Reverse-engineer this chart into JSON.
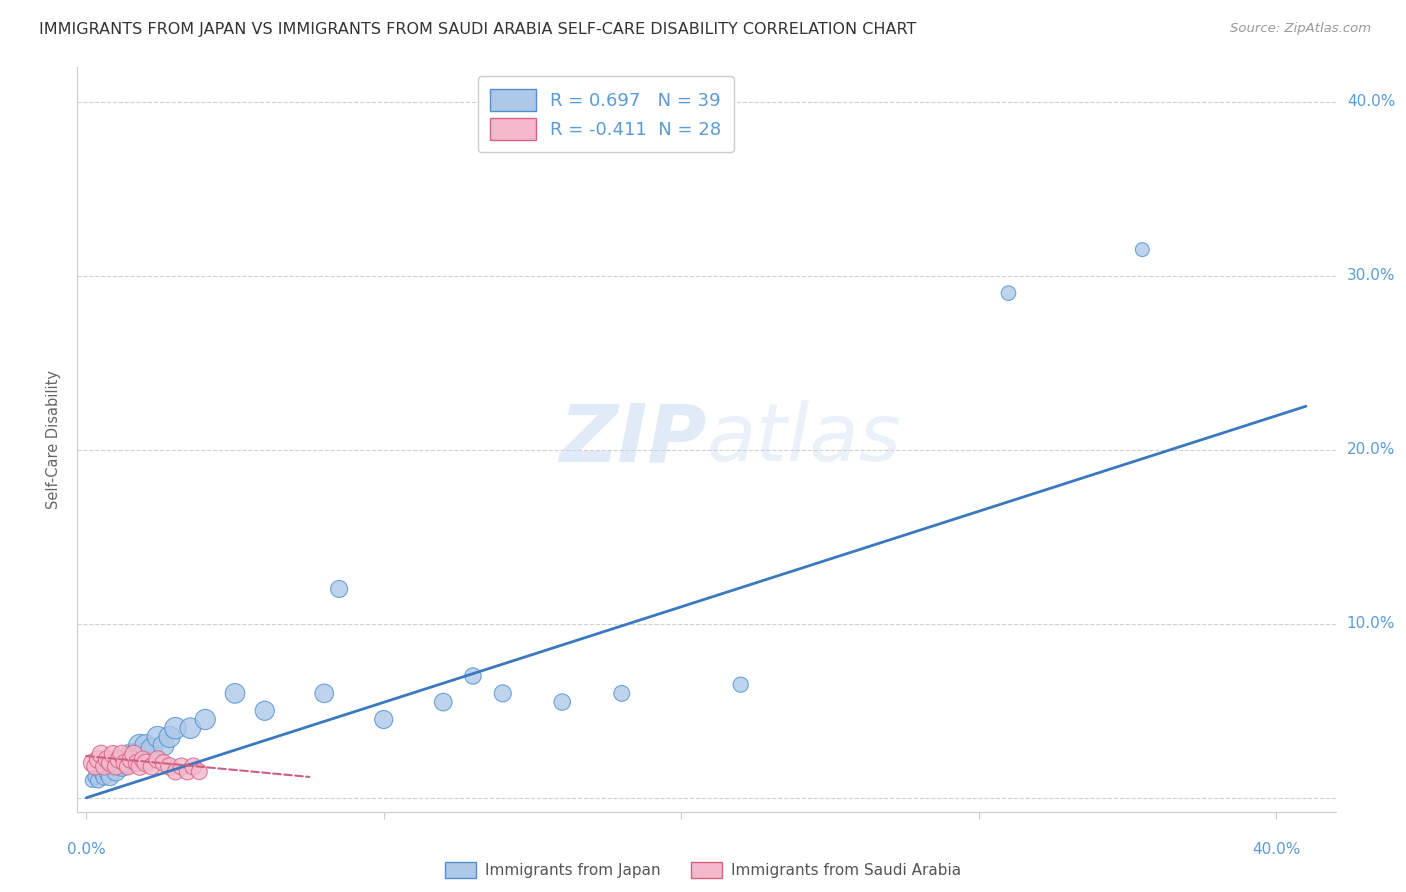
{
  "title": "IMMIGRANTS FROM JAPAN VS IMMIGRANTS FROM SAUDI ARABIA SELF-CARE DISABILITY CORRELATION CHART",
  "source": "Source: ZipAtlas.com",
  "ylabel": "Self-Care Disability",
  "japan_R": 0.697,
  "japan_N": 39,
  "saudi_R": -0.411,
  "saudi_N": 28,
  "japan_color": "#aec8e8",
  "japan_edge_color": "#5090d0",
  "japan_line_color": "#3a78c0",
  "saudi_color": "#f5b8cc",
  "saudi_edge_color": "#d86080",
  "saudi_line_color": "#cc6080",
  "background_color": "#ffffff",
  "axis_color": "#5b9bd5",
  "legend_label_japan": "Immigrants from Japan",
  "legend_label_saudi": "Immigrants from Saudi Arabia",
  "xlim": [
    -0.003,
    0.42
  ],
  "ylim": [
    -0.008,
    0.42
  ],
  "ytick_vals": [
    0.0,
    0.1,
    0.2,
    0.3,
    0.4
  ],
  "ytick_labels": [
    "",
    "10.0%",
    "20.0%",
    "30.0%",
    "40.0%"
  ],
  "xtick_vals": [
    0.0,
    0.1,
    0.2,
    0.3,
    0.4
  ],
  "japan_x": [
    0.002,
    0.003,
    0.004,
    0.005,
    0.006,
    0.007,
    0.008,
    0.009,
    0.01,
    0.011,
    0.012,
    0.013,
    0.014,
    0.015,
    0.016,
    0.017,
    0.018,
    0.019,
    0.02,
    0.022,
    0.024,
    0.026,
    0.028,
    0.03,
    0.035,
    0.04,
    0.05,
    0.06,
    0.08,
    0.1,
    0.12,
    0.14,
    0.16,
    0.18,
    0.22,
    0.085,
    0.13,
    0.31,
    0.355
  ],
  "japan_y": [
    0.01,
    0.012,
    0.01,
    0.015,
    0.012,
    0.015,
    0.012,
    0.018,
    0.015,
    0.02,
    0.018,
    0.022,
    0.02,
    0.025,
    0.022,
    0.025,
    0.03,
    0.025,
    0.03,
    0.028,
    0.035,
    0.03,
    0.035,
    0.04,
    0.04,
    0.045,
    0.06,
    0.05,
    0.06,
    0.045,
    0.055,
    0.06,
    0.055,
    0.06,
    0.065,
    0.12,
    0.07,
    0.29,
    0.315
  ],
  "japan_s": [
    100,
    110,
    120,
    130,
    140,
    150,
    160,
    170,
    180,
    190,
    200,
    210,
    220,
    230,
    240,
    250,
    260,
    240,
    250,
    240,
    230,
    220,
    230,
    240,
    220,
    210,
    200,
    190,
    180,
    170,
    160,
    150,
    140,
    130,
    120,
    150,
    140,
    110,
    100
  ],
  "saudi_x": [
    0.002,
    0.003,
    0.004,
    0.005,
    0.006,
    0.007,
    0.008,
    0.009,
    0.01,
    0.011,
    0.012,
    0.013,
    0.014,
    0.015,
    0.016,
    0.017,
    0.018,
    0.019,
    0.02,
    0.022,
    0.024,
    0.026,
    0.028,
    0.03,
    0.032,
    0.034,
    0.036,
    0.038
  ],
  "saudi_y": [
    0.02,
    0.018,
    0.022,
    0.025,
    0.018,
    0.022,
    0.02,
    0.025,
    0.018,
    0.022,
    0.025,
    0.02,
    0.018,
    0.022,
    0.025,
    0.02,
    0.018,
    0.022,
    0.02,
    0.018,
    0.022,
    0.02,
    0.018,
    0.015,
    0.018,
    0.015,
    0.018,
    0.015
  ],
  "saudi_s": [
    160,
    150,
    160,
    170,
    150,
    160,
    150,
    160,
    150,
    160,
    170,
    160,
    150,
    160,
    170,
    150,
    160,
    150,
    160,
    150,
    160,
    150,
    160,
    140,
    150,
    140,
    150,
    130
  ],
  "japan_trend_x": [
    0.0,
    0.41
  ],
  "japan_trend_y": [
    0.0,
    0.225
  ],
  "saudi_trend_x": [
    0.0,
    0.075
  ],
  "saudi_trend_y": [
    0.024,
    0.012
  ]
}
